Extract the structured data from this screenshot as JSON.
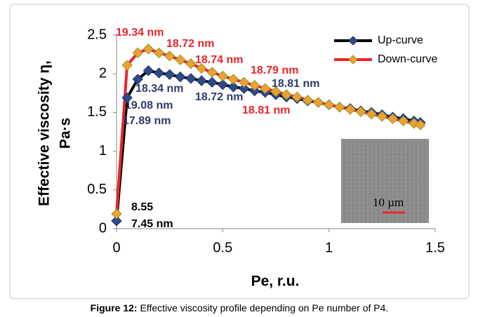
{
  "chart_data": {
    "type": "line",
    "xlabel": "Pe, r.u.",
    "ylabel": [
      "Effective viscosity η,",
      "Pa·s"
    ],
    "x": [
      0,
      0.05,
      0.1,
      0.15,
      0.2,
      0.25,
      0.3,
      0.35,
      0.4,
      0.45,
      0.5,
      0.55,
      0.6,
      0.65,
      0.7,
      0.75,
      0.8,
      0.85,
      0.9,
      0.95,
      1.0,
      1.05,
      1.1,
      1.15,
      1.2,
      1.25,
      1.3,
      1.35,
      1.4,
      1.43
    ],
    "series": [
      {
        "name": "Up-curve",
        "color": "#2e4a8e",
        "line_color": "#000000",
        "values": [
          0.1,
          1.69,
          1.93,
          2.04,
          2.01,
          1.99,
          1.96,
          1.94,
          1.91,
          1.89,
          1.86,
          1.83,
          1.81,
          1.78,
          1.76,
          1.73,
          1.7,
          1.68,
          1.65,
          1.63,
          1.6,
          1.57,
          1.55,
          1.52,
          1.5,
          1.47,
          1.44,
          1.42,
          1.39,
          1.37
        ]
      },
      {
        "name": "Down-curve",
        "color": "#f0a030",
        "line_color": "#e8262a",
        "values": [
          0.19,
          2.11,
          2.27,
          2.32,
          2.27,
          2.23,
          2.18,
          2.13,
          2.07,
          2.02,
          1.97,
          1.93,
          1.89,
          1.85,
          1.81,
          1.77,
          1.73,
          1.7,
          1.66,
          1.63,
          1.6,
          1.57,
          1.54,
          1.51,
          1.48,
          1.45,
          1.42,
          1.39,
          1.36,
          1.34
        ]
      }
    ],
    "xlim": [
      0,
      1.5
    ],
    "xticks": [
      0,
      0.5,
      1,
      1.5
    ],
    "ylim": [
      0,
      2.5
    ],
    "yticks": [
      0,
      0.5,
      1,
      1.5,
      2,
      2.5
    ],
    "grid": false,
    "legend": "upper right",
    "annotations": [
      {
        "text": "19.34 nm",
        "color": "#e8262a"
      },
      {
        "text": "18.72 nm",
        "color": "#e8262a"
      },
      {
        "text": "18.74 nm",
        "color": "#e8262a"
      },
      {
        "text": "18.79 nm",
        "color": "#e8262a"
      },
      {
        "text": "18.81 nm",
        "color": "#e8262a"
      },
      {
        "text": "18.34 nm",
        "color": "#2e3a6e"
      },
      {
        "text": "19.08 nm",
        "color": "#2e3a6e"
      },
      {
        "text": "17.89 nm",
        "color": "#2e3a6e"
      },
      {
        "text": "18.72 nm",
        "color": "#2e3a6e"
      },
      {
        "text": "18.81 nm",
        "color": "#2e3a6e"
      },
      {
        "text": "8.55",
        "color": "#000000"
      },
      {
        "text": "7.45 nm",
        "color": "#000000"
      }
    ],
    "inset_label": "10 µm"
  },
  "caption": {
    "label": "Figure 12:",
    "text": " Effective viscosity profile depending on Pe number of P4."
  }
}
